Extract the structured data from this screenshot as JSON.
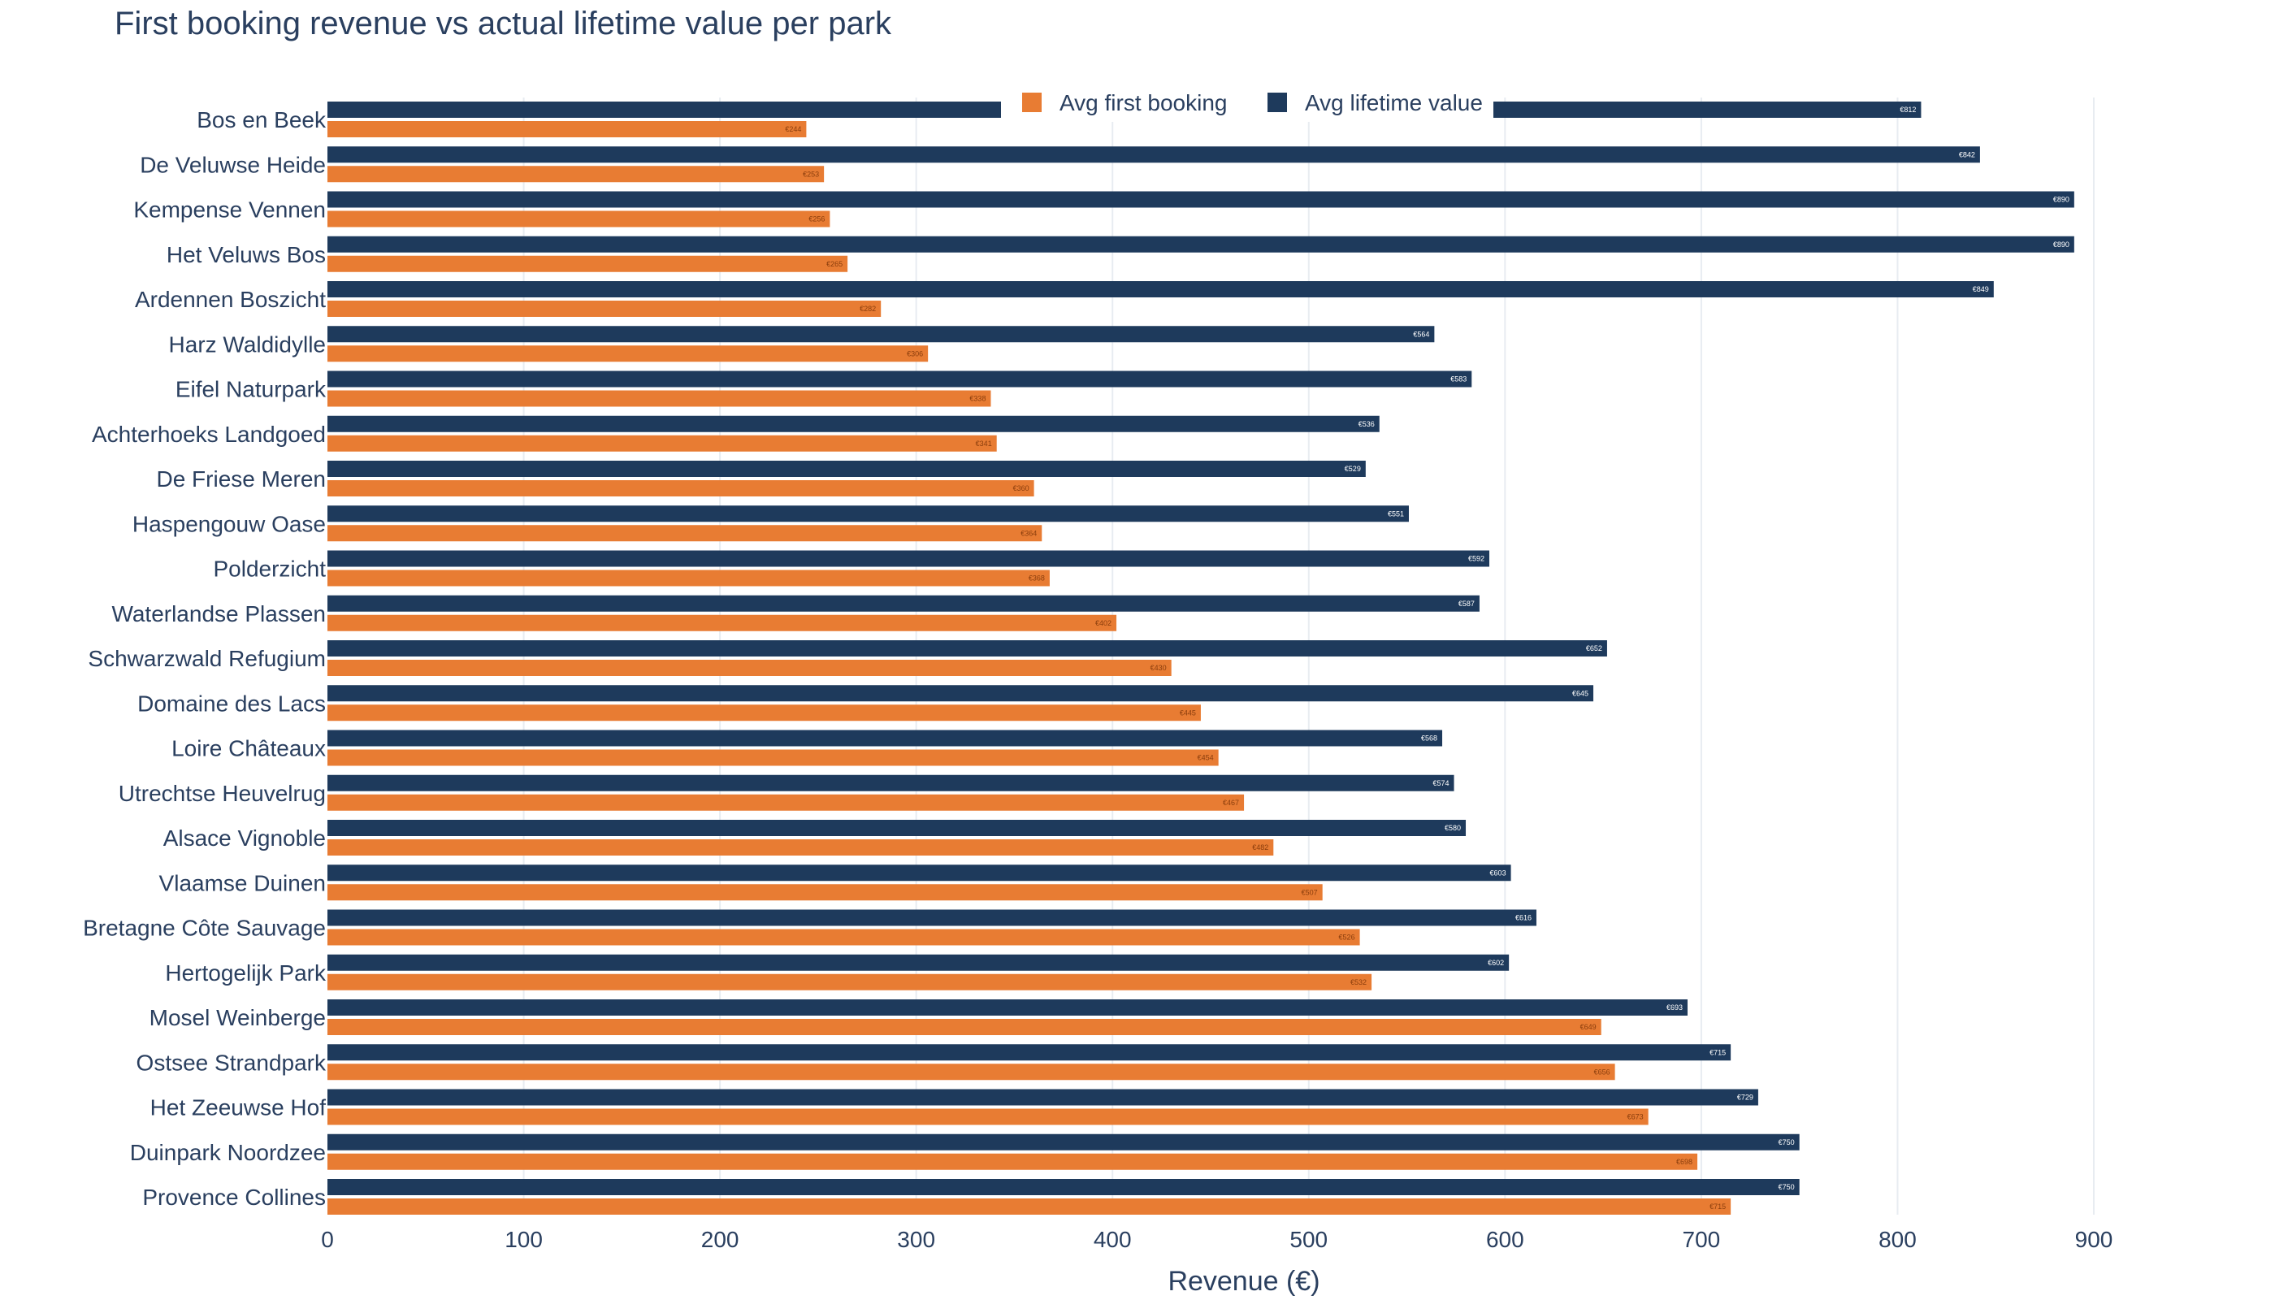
{
  "chart_data": {
    "type": "bar",
    "orientation": "horizontal",
    "title": "First booking revenue vs actual lifetime value per park",
    "xlabel": "Revenue (€)",
    "ylabel": "",
    "xlim": [
      0,
      900
    ],
    "xticks": [
      0,
      100,
      200,
      300,
      400,
      500,
      600,
      700,
      800,
      900
    ],
    "grid": true,
    "legend_position": "top-center",
    "categories": [
      "Bos en Beek",
      "De Veluwse Heide",
      "Kempense Vennen",
      "Het Veluws Bos",
      "Ardennen Boszicht",
      "Harz Waldidylle",
      "Eifel Naturpark",
      "Achterhoeks Landgoed",
      "De Friese Meren",
      "Haspengouw Oase",
      "Polderzicht",
      "Waterlandse Plassen",
      "Schwarzwald Refugium",
      "Domaine des Lacs",
      "Loire Châteaux",
      "Utrechtse Heuvelrug",
      "Alsace Vignoble",
      "Vlaamse Duinen",
      "Bretagne Côte Sauvage",
      "Hertogelijk Park",
      "Mosel Weinberge",
      "Ostsee Strandpark",
      "Het Zeeuwse Hof",
      "Duinpark Noordzee",
      "Provence Collines"
    ],
    "series": [
      {
        "name": "Avg first booking",
        "color": "#e87c33",
        "values": [
          244,
          253,
          256,
          265,
          282,
          306,
          338,
          341,
          360,
          364,
          368,
          402,
          430,
          445,
          454,
          467,
          482,
          507,
          526,
          532,
          649,
          656,
          673,
          698,
          715
        ],
        "labels": [
          "€244",
          "€253",
          "€256",
          "€265",
          "€282",
          "€306",
          "€338",
          "€341",
          "€360",
          "€364",
          "€368",
          "€402",
          "€430",
          "€445",
          "€454",
          "€467",
          "€482",
          "€507",
          "€526",
          "€532",
          "€649",
          "€656",
          "€673",
          "€698",
          "€715"
        ]
      },
      {
        "name": "Avg lifetime value",
        "color": "#1e3a5c",
        "values": [
          812,
          842,
          890,
          890,
          849,
          564,
          583,
          536,
          529,
          551,
          592,
          587,
          652,
          645,
          568,
          574,
          580,
          603,
          616,
          602,
          693,
          715,
          729,
          750,
          750
        ],
        "labels": [
          "€812",
          "€842",
          "€890",
          "€890",
          "€849",
          "€564",
          "€583",
          "€536",
          "€529",
          "€551",
          "€592",
          "€587",
          "€652",
          "€645",
          "€568",
          "€574",
          "€580",
          "€603",
          "€616",
          "€602",
          "€693",
          "€715",
          "€729",
          "€750",
          "€750"
        ]
      }
    ]
  }
}
